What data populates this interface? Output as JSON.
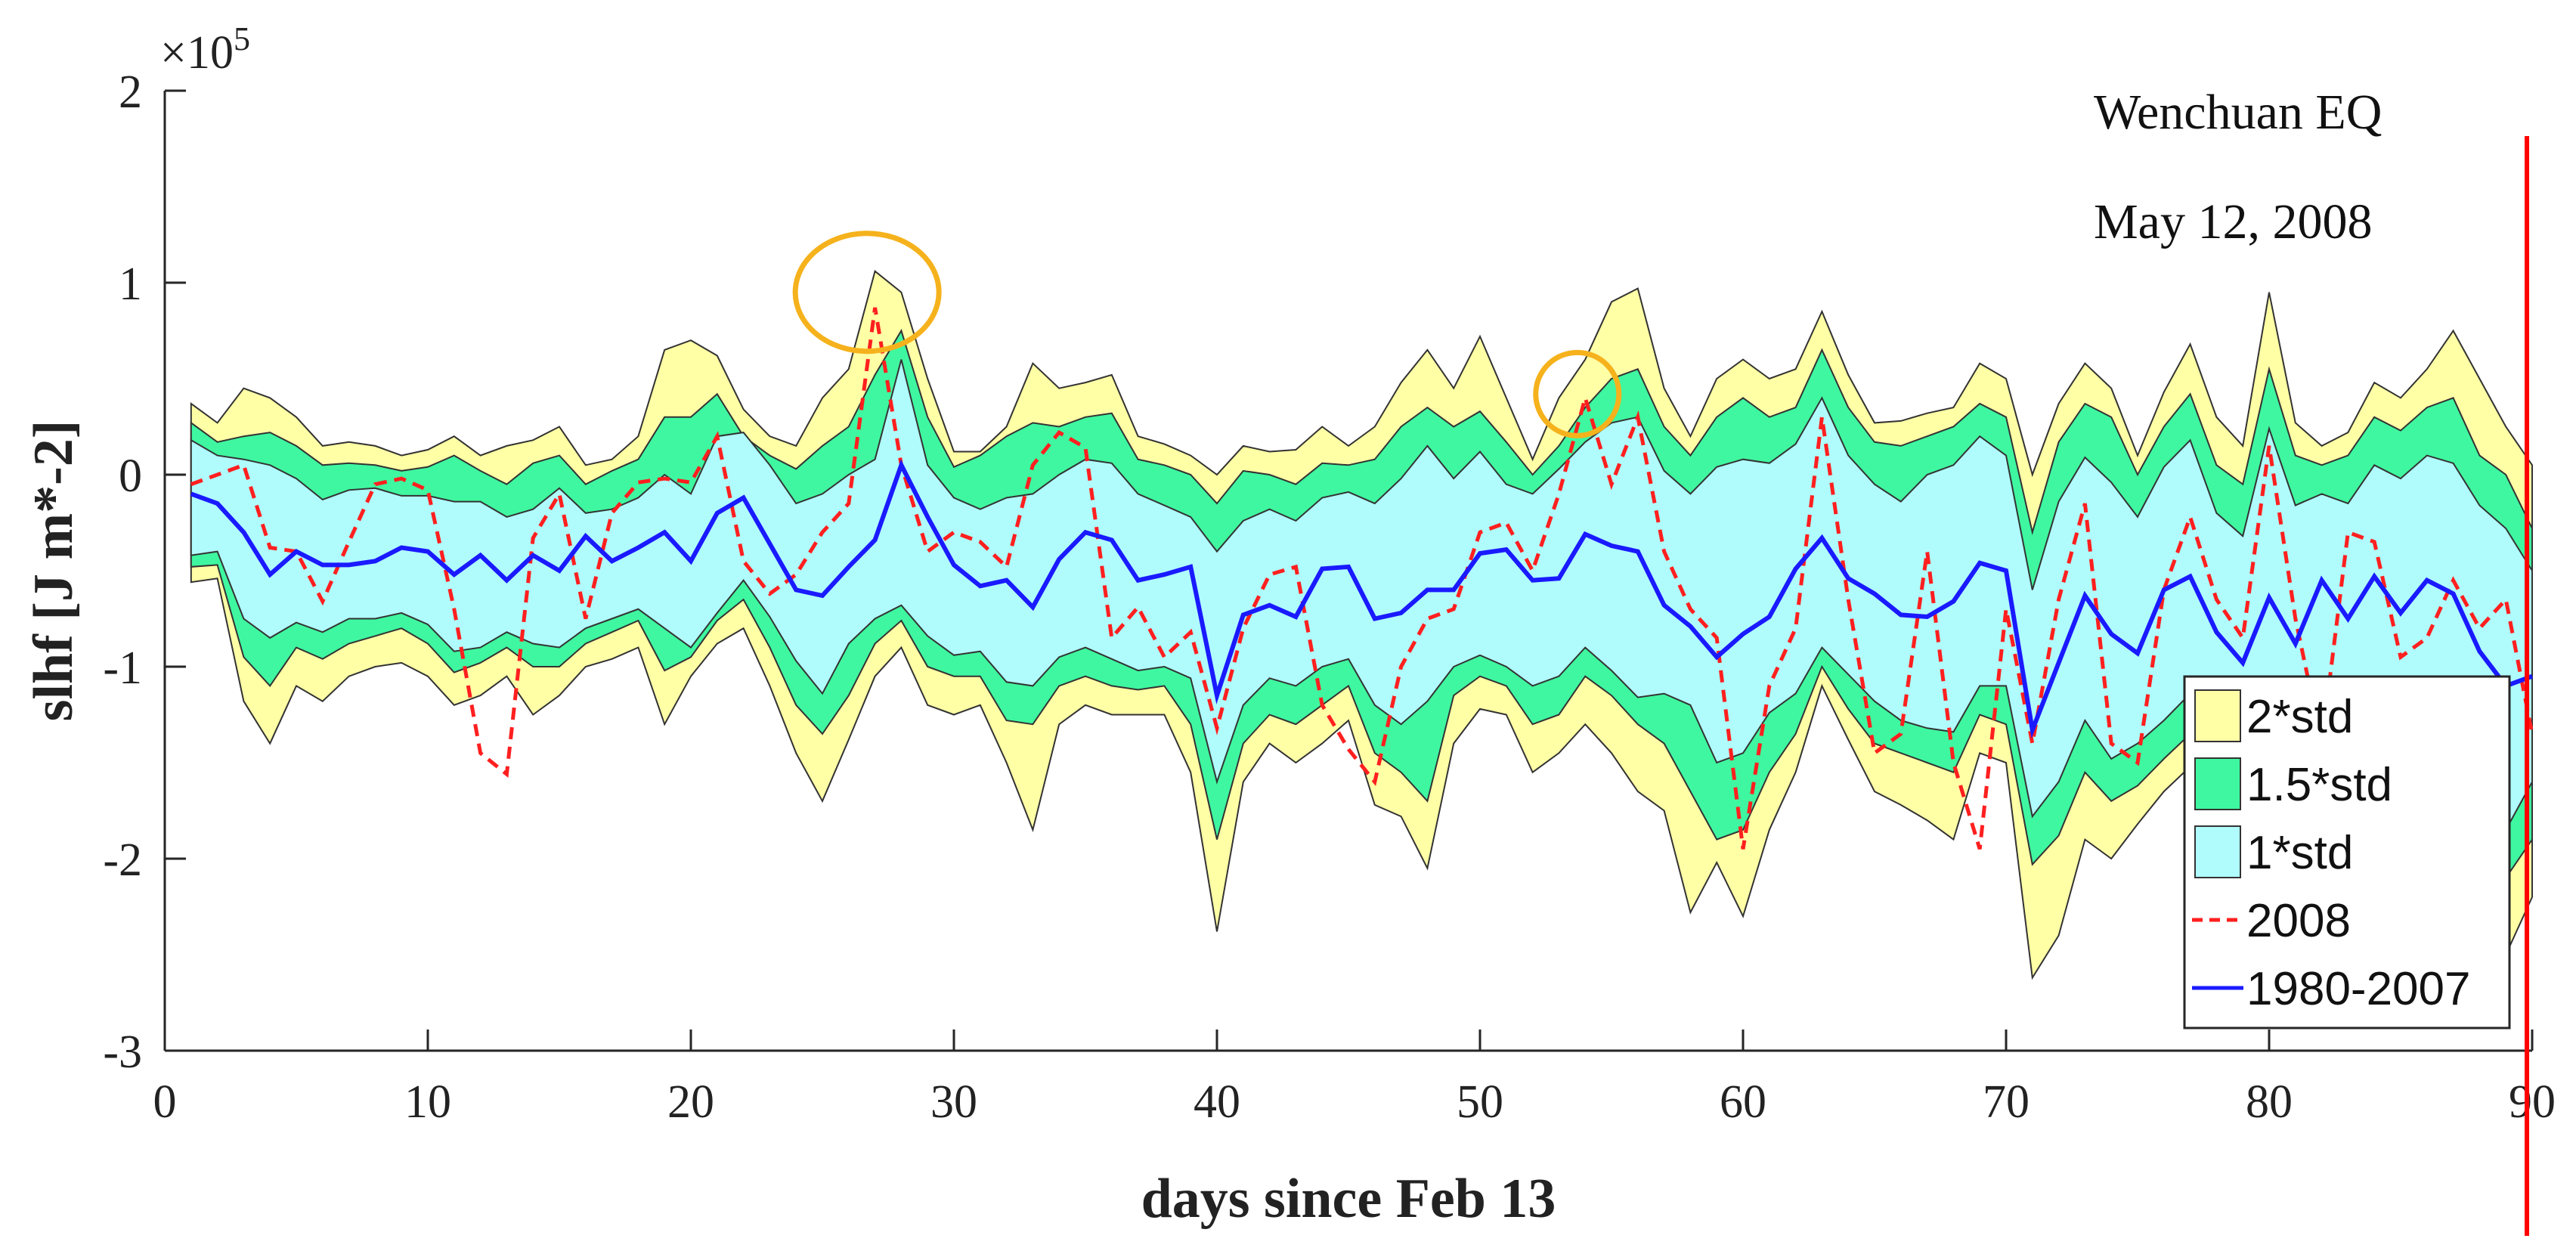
{
  "chart_data": {
    "type": "area",
    "title": "",
    "xlabel": "days since Feb 13",
    "ylabel": "slhf [J m*-2]",
    "y_exponent_label": "×10",
    "y_exponent_power": "5",
    "xlim": [
      0,
      90
    ],
    "ylim": [
      -3,
      2
    ],
    "grid": false,
    "x_ticks": [
      0,
      10,
      20,
      30,
      40,
      50,
      60,
      70,
      80,
      90
    ],
    "y_ticks": [
      2,
      1,
      0,
      -1,
      -2,
      -3
    ],
    "legend_position": "bottom-right",
    "legend": [
      {
        "label": "2*std",
        "kind": "patch",
        "color": "#ffffa6"
      },
      {
        "label": "1.5*std",
        "kind": "patch",
        "color": "#3ff7a0"
      },
      {
        "label": "1*std",
        "kind": "patch",
        "color": "#b0fcfc"
      },
      {
        "label": "2008",
        "kind": "dashed-line",
        "color": "#ff1f1f"
      },
      {
        "label": "1980-2007",
        "kind": "line",
        "color": "#1a1aff"
      }
    ],
    "annotations": {
      "event_name": "Wenchuan EQ",
      "event_date": "May 12, 2008",
      "event_day": 89.8,
      "event_line_color": "#ff0000",
      "circle_color": "#f5b21c",
      "circles": [
        {
          "x": 26.7,
          "y": 0.95
        },
        {
          "x": 53.7,
          "y": 0.42
        }
      ]
    },
    "x": [
      1,
      2,
      3,
      4,
      5,
      6,
      7,
      8,
      9,
      10,
      11,
      12,
      13,
      14,
      15,
      16,
      17,
      18,
      19,
      20,
      21,
      22,
      23,
      24,
      25,
      26,
      27,
      28,
      29,
      30,
      31,
      32,
      33,
      34,
      35,
      36,
      37,
      38,
      39,
      40,
      41,
      42,
      43,
      44,
      45,
      46,
      47,
      48,
      49,
      50,
      51,
      52,
      53,
      54,
      55,
      56,
      57,
      58,
      59,
      60,
      61,
      62,
      63,
      64,
      65,
      66,
      67,
      68,
      69,
      70,
      71,
      72,
      73,
      74,
      75,
      76,
      77,
      78,
      79,
      80,
      81,
      82,
      83,
      84,
      85,
      86,
      87,
      88,
      89,
      90
    ],
    "mean_1980_2007": [
      -0.1,
      -0.15,
      -0.3,
      -0.52,
      -0.4,
      -0.47,
      -0.47,
      -0.45,
      -0.38,
      -0.4,
      -0.52,
      -0.42,
      -0.55,
      -0.42,
      -0.5,
      -0.32,
      -0.45,
      -0.38,
      -0.3,
      -0.45,
      -0.2,
      -0.12,
      -0.36,
      -0.6,
      -0.63,
      -0.48,
      -0.34,
      0.05,
      -0.22,
      -0.47,
      -0.58,
      -0.55,
      -0.69,
      -0.44,
      -0.3,
      -0.34,
      -0.55,
      -0.52,
      -0.48,
      -1.15,
      -0.73,
      -0.68,
      -0.74,
      -0.49,
      -0.48,
      -0.75,
      -0.72,
      -0.6,
      -0.6,
      -0.41,
      -0.39,
      -0.55,
      -0.54,
      -0.31,
      -0.37,
      -0.4,
      -0.68,
      -0.79,
      -0.95,
      -0.83,
      -0.74,
      -0.49,
      -0.33,
      -0.54,
      -0.62,
      -0.73,
      -0.74,
      -0.66,
      -0.46,
      -0.5,
      -1.33,
      -0.98,
      -0.63,
      -0.83,
      -0.93,
      -0.6,
      -0.53,
      -0.82,
      -0.98,
      -0.64,
      -0.88,
      -0.55,
      -0.75,
      -0.53,
      -0.72,
      -0.55,
      -0.62,
      -0.92,
      -1.1,
      -1.05
    ],
    "value_2008": [
      -0.05,
      0.0,
      0.05,
      -0.38,
      -0.4,
      -0.66,
      -0.35,
      -0.05,
      -0.02,
      -0.08,
      -0.7,
      -1.45,
      -1.56,
      -0.33,
      -0.1,
      -0.75,
      -0.2,
      -0.04,
      -0.02,
      -0.04,
      0.2,
      -0.45,
      -0.62,
      -0.52,
      -0.3,
      -0.15,
      0.87,
      0.05,
      -0.4,
      -0.3,
      -0.35,
      -0.48,
      0.05,
      0.22,
      0.14,
      -0.85,
      -0.69,
      -0.95,
      -0.82,
      -1.32,
      -0.8,
      -0.52,
      -0.48,
      -1.2,
      -1.43,
      -1.6,
      -1.0,
      -0.75,
      -0.7,
      -0.3,
      -0.25,
      -0.5,
      -0.1,
      0.4,
      -0.05,
      0.3,
      -0.4,
      -0.7,
      -0.85,
      -1.95,
      -1.1,
      -0.8,
      0.3,
      -0.65,
      -1.45,
      -1.35,
      -0.4,
      -1.5,
      -1.95,
      -0.7,
      -1.4,
      -0.65,
      -0.15,
      -1.4,
      -1.5,
      -0.6,
      -0.22,
      -0.65,
      -0.85,
      0.15,
      -0.75,
      -1.4,
      -0.3,
      -0.35,
      -0.95,
      -0.85,
      -0.55,
      -0.8,
      -0.65,
      -1.35
    ],
    "band_1std_upper": [
      0.18,
      0.1,
      0.08,
      0.05,
      -0.02,
      -0.13,
      -0.08,
      -0.07,
      -0.11,
      -0.11,
      -0.14,
      -0.14,
      -0.22,
      -0.18,
      -0.07,
      -0.2,
      -0.18,
      -0.12,
      0.0,
      -0.1,
      0.2,
      0.22,
      0.05,
      -0.15,
      -0.1,
      0.0,
      0.08,
      0.6,
      0.05,
      -0.12,
      -0.18,
      -0.12,
      -0.1,
      0.0,
      0.08,
      0.06,
      -0.1,
      -0.16,
      -0.22,
      -0.4,
      -0.24,
      -0.18,
      -0.24,
      -0.12,
      -0.09,
      -0.15,
      -0.02,
      0.15,
      -0.02,
      0.12,
      -0.05,
      -0.1,
      0.03,
      0.17,
      0.27,
      0.3,
      0.02,
      -0.1,
      0.04,
      0.08,
      0.06,
      0.16,
      0.4,
      0.1,
      -0.05,
      -0.14,
      0.0,
      0.05,
      0.2,
      0.1,
      -0.6,
      -0.14,
      0.09,
      -0.04,
      -0.22,
      0.04,
      0.18,
      -0.2,
      -0.32,
      0.24,
      -0.16,
      -0.1,
      -0.15,
      0.05,
      -0.02,
      0.1,
      0.06,
      -0.16,
      -0.28,
      -0.5
    ],
    "band_1std_lower": [
      -0.42,
      -0.4,
      -0.75,
      -0.85,
      -0.77,
      -0.82,
      -0.75,
      -0.75,
      -0.72,
      -0.78,
      -0.92,
      -0.9,
      -0.82,
      -0.88,
      -0.9,
      -0.8,
      -0.75,
      -0.7,
      -0.8,
      -0.9,
      -0.72,
      -0.55,
      -0.74,
      -0.97,
      -1.14,
      -0.88,
      -0.75,
      -0.68,
      -0.84,
      -0.94,
      -0.92,
      -1.08,
      -1.1,
      -0.95,
      -0.9,
      -0.96,
      -1.02,
      -1.0,
      -1.06,
      -1.6,
      -1.2,
      -1.06,
      -1.1,
      -1.0,
      -0.96,
      -1.2,
      -1.3,
      -1.18,
      -1.0,
      -0.94,
      -1.0,
      -1.1,
      -1.05,
      -0.9,
      -1.02,
      -1.16,
      -1.14,
      -1.2,
      -1.5,
      -1.45,
      -1.24,
      -1.14,
      -0.9,
      -1.04,
      -1.18,
      -1.28,
      -1.32,
      -1.34,
      -1.1,
      -1.1,
      -1.78,
      -1.6,
      -1.28,
      -1.48,
      -1.4,
      -1.28,
      -1.14,
      -1.34,
      -1.62,
      -1.3,
      -1.38,
      -1.28,
      -1.3,
      -1.2,
      -1.38,
      -1.28,
      -1.26,
      -1.6,
      -1.85,
      -1.6
    ],
    "band_1_5std_upper": [
      0.27,
      0.17,
      0.2,
      0.22,
      0.15,
      0.05,
      0.06,
      0.05,
      0.02,
      0.04,
      0.1,
      0.02,
      -0.05,
      0.06,
      0.1,
      -0.05,
      0.02,
      0.08,
      0.3,
      0.3,
      0.42,
      0.2,
      0.1,
      0.03,
      0.15,
      0.25,
      0.52,
      0.75,
      0.3,
      0.04,
      0.1,
      0.2,
      0.27,
      0.25,
      0.3,
      0.32,
      0.08,
      0.05,
      0.0,
      -0.15,
      0.02,
      0.0,
      -0.05,
      0.06,
      0.05,
      0.08,
      0.25,
      0.35,
      0.25,
      0.33,
      0.17,
      0.0,
      0.15,
      0.35,
      0.5,
      0.55,
      0.25,
      0.1,
      0.3,
      0.4,
      0.3,
      0.35,
      0.65,
      0.35,
      0.17,
      0.15,
      0.2,
      0.25,
      0.37,
      0.3,
      -0.3,
      0.17,
      0.37,
      0.3,
      0.0,
      0.25,
      0.42,
      0.05,
      -0.05,
      0.55,
      0.1,
      0.05,
      0.1,
      0.3,
      0.23,
      0.35,
      0.4,
      0.1,
      0.0,
      -0.28
    ],
    "band_1_5std_lower": [
      -0.48,
      -0.47,
      -0.95,
      -1.1,
      -0.9,
      -0.96,
      -0.88,
      -0.84,
      -0.8,
      -0.88,
      -1.03,
      -0.98,
      -0.9,
      -1.0,
      -1.0,
      -0.88,
      -0.82,
      -0.76,
      -1.02,
      -0.95,
      -0.76,
      -0.65,
      -0.9,
      -1.2,
      -1.35,
      -1.15,
      -0.88,
      -0.76,
      -1.0,
      -1.05,
      -1.05,
      -1.28,
      -1.3,
      -1.1,
      -1.05,
      -1.1,
      -1.12,
      -1.1,
      -1.3,
      -1.9,
      -1.4,
      -1.25,
      -1.3,
      -1.2,
      -1.1,
      -1.45,
      -1.55,
      -1.7,
      -1.15,
      -1.05,
      -1.1,
      -1.3,
      -1.25,
      -1.05,
      -1.15,
      -1.3,
      -1.4,
      -1.65,
      -1.9,
      -1.85,
      -1.55,
      -1.35,
      -1.0,
      -1.22,
      -1.4,
      -1.45,
      -1.5,
      -1.55,
      -1.25,
      -1.3,
      -2.03,
      -1.88,
      -1.55,
      -1.7,
      -1.62,
      -1.48,
      -1.35,
      -1.58,
      -1.85,
      -1.5,
      -1.58,
      -1.5,
      -1.5,
      -1.45,
      -1.6,
      -1.52,
      -1.5,
      -1.85,
      -2.1,
      -1.9
    ],
    "band_2std_upper": [
      0.37,
      0.27,
      0.45,
      0.4,
      0.3,
      0.15,
      0.17,
      0.15,
      0.1,
      0.13,
      0.2,
      0.1,
      0.15,
      0.18,
      0.25,
      0.05,
      0.08,
      0.2,
      0.65,
      0.7,
      0.62,
      0.34,
      0.2,
      0.15,
      0.4,
      0.55,
      1.06,
      0.95,
      0.5,
      0.12,
      0.12,
      0.25,
      0.58,
      0.45,
      0.48,
      0.52,
      0.2,
      0.16,
      0.1,
      0.0,
      0.15,
      0.12,
      0.13,
      0.25,
      0.15,
      0.25,
      0.48,
      0.65,
      0.45,
      0.72,
      0.4,
      0.08,
      0.4,
      0.6,
      0.9,
      0.97,
      0.45,
      0.2,
      0.5,
      0.6,
      0.5,
      0.55,
      0.85,
      0.52,
      0.27,
      0.28,
      0.32,
      0.35,
      0.58,
      0.5,
      0.0,
      0.37,
      0.58,
      0.45,
      0.1,
      0.43,
      0.68,
      0.3,
      0.15,
      0.95,
      0.27,
      0.15,
      0.22,
      0.48,
      0.4,
      0.55,
      0.75,
      0.5,
      0.25,
      0.05
    ],
    "band_2std_lower": [
      -0.56,
      -0.54,
      -1.18,
      -1.4,
      -1.1,
      -1.18,
      -1.05,
      -1.0,
      -0.98,
      -1.05,
      -1.2,
      -1.15,
      -1.05,
      -1.25,
      -1.15,
      -1.0,
      -0.96,
      -0.9,
      -1.3,
      -1.05,
      -0.88,
      -0.8,
      -1.1,
      -1.45,
      -1.7,
      -1.38,
      -1.05,
      -0.9,
      -1.2,
      -1.25,
      -1.2,
      -1.5,
      -1.85,
      -1.3,
      -1.2,
      -1.25,
      -1.25,
      -1.25,
      -1.55,
      -2.38,
      -1.6,
      -1.4,
      -1.5,
      -1.4,
      -1.28,
      -1.72,
      -1.78,
      -2.05,
      -1.4,
      -1.22,
      -1.25,
      -1.55,
      -1.45,
      -1.3,
      -1.45,
      -1.65,
      -1.75,
      -2.28,
      -2.02,
      -2.3,
      -1.85,
      -1.55,
      -1.1,
      -1.38,
      -1.65,
      -1.72,
      -1.8,
      -1.9,
      -1.45,
      -1.5,
      -2.62,
      -2.4,
      -1.9,
      -2.0,
      -1.82,
      -1.65,
      -1.52,
      -1.8,
      -2.1,
      -1.7,
      -1.8,
      -1.7,
      -1.7,
      -1.65,
      -1.85,
      -1.75,
      -1.7,
      -2.1,
      -2.5,
      -2.2
    ]
  }
}
